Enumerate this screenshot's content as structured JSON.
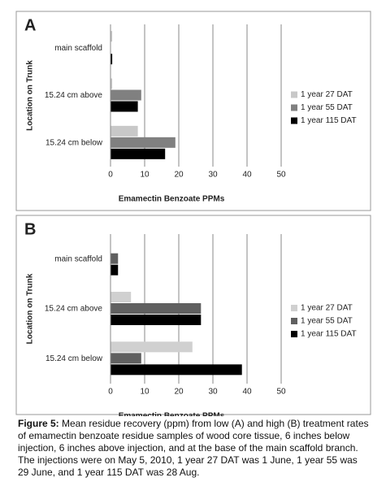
{
  "chart_data": [
    {
      "type": "bar",
      "orientation": "horizontal",
      "panel": "A",
      "xlabel": "Emamectin Benzoate PPMs",
      "ylabel": "Location on Trunk",
      "categories": [
        "main scaffold",
        "15.24 cm above",
        "15.24 cm below"
      ],
      "series": [
        {
          "name": "1 year 27 DAT",
          "color": "#c8c8c8",
          "values": [
            0.5,
            0.5,
            8
          ]
        },
        {
          "name": "1 year 55 DAT",
          "color": "#808080",
          "values": [
            0,
            9,
            19
          ]
        },
        {
          "name": "1 year 115 DAT",
          "color": "#000000",
          "values": [
            0.5,
            8,
            16
          ]
        }
      ],
      "xlim": [
        0,
        50
      ],
      "xticks": [
        0,
        10,
        20,
        30,
        40,
        50
      ],
      "grid": true,
      "legend": "right"
    },
    {
      "type": "bar",
      "orientation": "horizontal",
      "panel": "B",
      "xlabel": "Emamectin Benzoate PPMs",
      "ylabel": "Location on Trunk",
      "categories": [
        "main scaffold",
        "15.24 cm above",
        "15.24 cm below"
      ],
      "series": [
        {
          "name": "1 year 27 DAT",
          "color": "#d0d0d0",
          "values": [
            0,
            6,
            24
          ]
        },
        {
          "name": "1 year 55 DAT",
          "color": "#606060",
          "values": [
            2.2,
            26.5,
            9
          ]
        },
        {
          "name": "1 year 115 DAT",
          "color": "#000000",
          "values": [
            2.2,
            26.5,
            38.5
          ]
        }
      ],
      "xlim": [
        0,
        50
      ],
      "xticks": [
        0,
        10,
        20,
        30,
        40,
        50
      ],
      "grid": true,
      "legend": "right"
    }
  ],
  "caption": {
    "label": "Figure 5:",
    "text": "Mean residue recovery (ppm) from low (A) and high (B) treatment rates of emamectin benzoate residue samples of wood core tissue, 6 inches below injection, 6 inches above injection, and at the base of the main scaffold branch. The injections were on May 5, 2010, 1 year 27 DAT was 1 June, 1 year 55 was 29 June, and 1 year 115 DAT was 28 Aug."
  }
}
